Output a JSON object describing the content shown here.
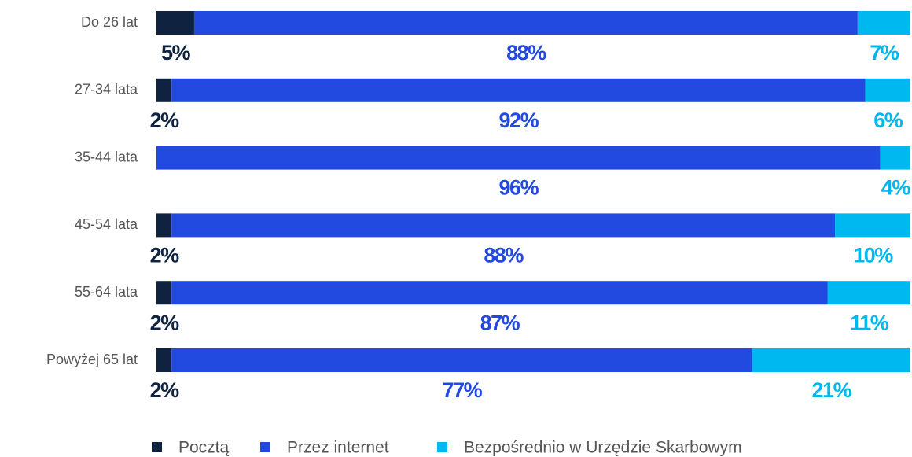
{
  "chart_data": {
    "type": "stacked_barh",
    "categories": [
      "Do 26 lat",
      "27-34 lata",
      "35-44 lata",
      "45-54 lata",
      "55-64 lata",
      "Powyżej 65 lat"
    ],
    "xlim": [
      0,
      100
    ],
    "series": [
      {
        "name": "Pocztą",
        "color": "#0f2340",
        "values": [
          5,
          2,
          0,
          2,
          2,
          2
        ],
        "value_labels": [
          "5%",
          "2%",
          null,
          "2%",
          "2%",
          "2%"
        ]
      },
      {
        "name": "Przez internet",
        "color": "#2249e0",
        "values": [
          88,
          92,
          96,
          88,
          87,
          77
        ],
        "value_labels": [
          "88%",
          "92%",
          "96%",
          "88%",
          "87%",
          "77%"
        ]
      },
      {
        "name": "Bezpośrednio w Urzędzie Skarbowym",
        "color": "#00b8f0",
        "values": [
          7,
          6,
          4,
          10,
          11,
          21
        ],
        "value_labels": [
          "7%",
          "6%",
          "4%",
          "10%",
          "11%",
          "21%"
        ]
      }
    ]
  }
}
